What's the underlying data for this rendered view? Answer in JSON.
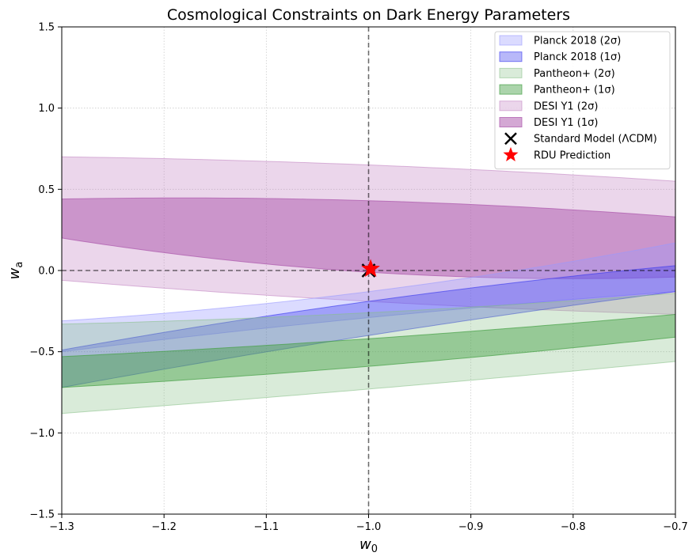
{
  "chart_data": {
    "type": "area",
    "title": "Cosmological Constraints on Dark Energy Parameters",
    "xlabel": "w",
    "xlabel_sub": "0",
    "ylabel": "w",
    "ylabel_sub": "a",
    "xlim": [
      -1.3,
      -0.7
    ],
    "ylim": [
      -1.5,
      1.5
    ],
    "xticks": [
      -1.3,
      -1.2,
      -1.1,
      -1.0,
      -0.9,
      -0.8,
      -0.7
    ],
    "xtick_labels": [
      "−1.3",
      "−1.2",
      "−1.1",
      "−1.0",
      "−0.9",
      "−0.8",
      "−0.7"
    ],
    "yticks": [
      -1.5,
      -1.0,
      -0.5,
      0.0,
      0.5,
      1.0,
      1.5
    ],
    "ytick_labels": [
      "−1.5",
      "−1.0",
      "−0.5",
      "0.0",
      "0.5",
      "1.0",
      "1.5"
    ],
    "grid": true,
    "legend_position": "top-right",
    "reference_lines": {
      "w0": -1.0,
      "wa": 0.0
    },
    "regions": [
      {
        "name": "DESI Y1 (2σ)",
        "color": "#c080c0",
        "opacity": 0.32,
        "x": [
          -1.3,
          -0.7
        ],
        "upper": [
          0.7,
          0.55
        ],
        "lower": [
          -0.06,
          -0.27
        ],
        "upper_mid": 0.65,
        "lower_mid": -0.19
      },
      {
        "name": "DESI Y1 (1σ)",
        "color": "#b060b0",
        "opacity": 0.55,
        "x": [
          -1.3,
          -0.7
        ],
        "upper": [
          0.44,
          0.33
        ],
        "lower": [
          0.2,
          -0.04
        ],
        "upper_mid": 0.43,
        "lower_mid": -0.01
      },
      {
        "name": "Planck 2018 (2σ)",
        "color": "#9999ff",
        "opacity": 0.35,
        "x": [
          -1.3,
          -0.7
        ],
        "upper": [
          -0.31,
          0.17
        ],
        "lower": [
          -0.5,
          -0.13
        ],
        "upper_mid": -0.13,
        "lower_mid": -0.29
      },
      {
        "name": "Planck 2018 (1σ)",
        "color": "#3333ee",
        "opacity": 0.35,
        "x": [
          -1.3,
          -0.7
        ],
        "upper": [
          -0.49,
          0.03
        ],
        "lower": [
          -0.72,
          -0.13
        ],
        "upper_mid": -0.19,
        "lower_mid": -0.4
      },
      {
        "name": "Pantheon+ (2σ)",
        "color": "#88c088",
        "opacity": 0.32,
        "x": [
          -1.3,
          -0.7
        ],
        "upper": [
          -0.33,
          -0.14
        ],
        "lower": [
          -0.88,
          -0.56
        ],
        "upper_mid": -0.26,
        "lower_mid": -0.73
      },
      {
        "name": "Pantheon+ (1σ)",
        "color": "#44a044",
        "opacity": 0.45,
        "x": [
          -1.3,
          -0.7
        ],
        "upper": [
          -0.53,
          -0.27
        ],
        "lower": [
          -0.72,
          -0.41
        ],
        "upper_mid": -0.42,
        "lower_mid": -0.59
      }
    ],
    "legend": [
      {
        "label": "Planck 2018 (2σ)",
        "kind": "patch",
        "color": "#9999ff",
        "opacity": 0.35
      },
      {
        "label": "Planck 2018 (1σ)",
        "kind": "patch",
        "color": "#3333ee",
        "opacity": 0.35
      },
      {
        "label": "Pantheon+ (2σ)",
        "kind": "patch",
        "color": "#88c088",
        "opacity": 0.32
      },
      {
        "label": "Pantheon+ (1σ)",
        "kind": "patch",
        "color": "#44a044",
        "opacity": 0.45
      },
      {
        "label": "DESI Y1 (2σ)",
        "kind": "patch",
        "color": "#c080c0",
        "opacity": 0.32
      },
      {
        "label": "DESI Y1 (1σ)",
        "kind": "patch",
        "color": "#b060b0",
        "opacity": 0.55
      },
      {
        "label": "Standard Model (ΛCDM)",
        "kind": "x-marker",
        "color": "#000000"
      },
      {
        "label": "RDU Prediction",
        "kind": "star-marker",
        "color": "#ff0000"
      }
    ],
    "points": [
      {
        "name": "Standard Model (ΛCDM)",
        "w0": -1.0,
        "wa": 0.0,
        "marker": "x",
        "color": "#000000"
      },
      {
        "name": "RDU Prediction",
        "w0": -0.998,
        "wa": 0.01,
        "marker": "star",
        "color": "#ff0000"
      }
    ]
  }
}
